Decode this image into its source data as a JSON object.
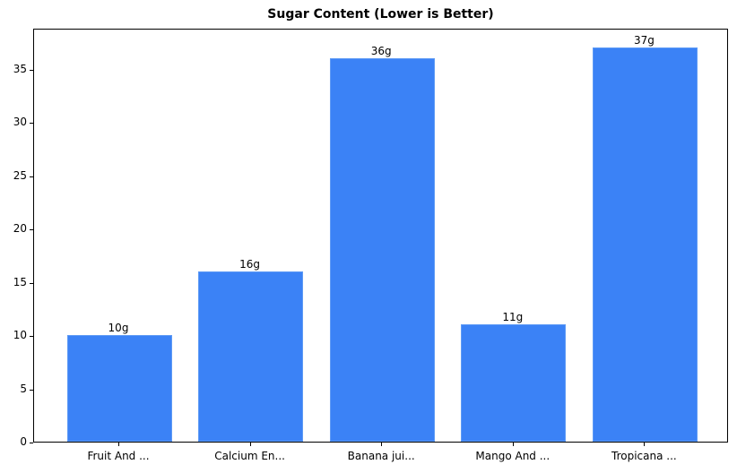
{
  "chart_data": {
    "type": "bar",
    "title": "Sugar Content (Lower is Better)",
    "xlabel": "",
    "ylabel": "",
    "categories": [
      "Fruit And ...",
      "Calcium En...",
      "Banana jui...",
      "Mango And ...",
      "Tropicana ..."
    ],
    "values": [
      10,
      16,
      36,
      11,
      37
    ],
    "data_labels": [
      "10g",
      "16g",
      "36g",
      "11g",
      "37g"
    ],
    "ylim": [
      0,
      38.85
    ],
    "yticks": [
      0,
      5,
      10,
      15,
      20,
      25,
      30,
      35
    ],
    "grid": false,
    "legend": null,
    "bar_color": "#3b82f6"
  }
}
